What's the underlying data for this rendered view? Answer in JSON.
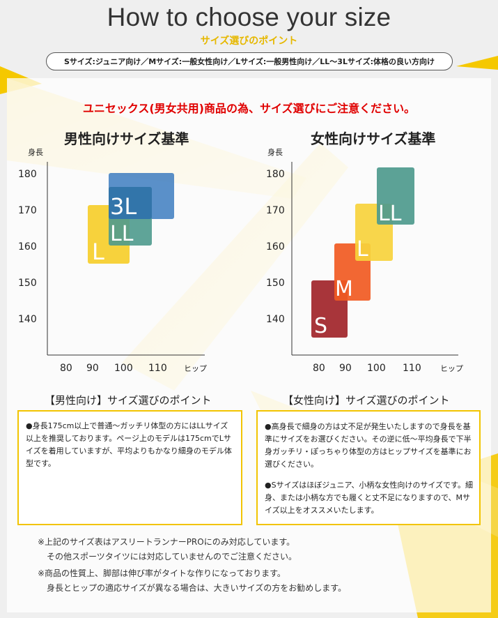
{
  "header": {
    "title": "How to choose your size",
    "subtitle": "サイズ選びのポイント",
    "size_legend": "Sサイズ:ジュニア向け／Mサイズ:一般女性向け／Lサイズ:一般男性向け／LL～3Lサイズ:体格の良い方向け"
  },
  "unisex_note": "ユニセックス(男女共用)商品の為、サイズ選びにご注意ください。",
  "men_chart": {
    "title": "男性向けサイズ基準",
    "y_label": "身長",
    "x_label": "ヒップ",
    "y_ticks": [
      "180",
      "170",
      "160",
      "150",
      "140"
    ],
    "x_ticks": [
      "80",
      "90",
      "100",
      "110"
    ],
    "sizes": [
      {
        "label": "L",
        "color": "#f7d23c"
      },
      {
        "label": "LL",
        "color": "#4e9a8d"
      },
      {
        "label": "3L",
        "color": "#3d7cc0"
      }
    ]
  },
  "women_chart": {
    "title": "女性向けサイズ基準",
    "y_label": "身長",
    "x_label": "ヒップ",
    "y_ticks": [
      "180",
      "170",
      "160",
      "150",
      "140"
    ],
    "x_ticks": [
      "80",
      "90",
      "100",
      "110"
    ],
    "sizes": [
      {
        "label": "S",
        "color": "#a8353a"
      },
      {
        "label": "M",
        "color": "#f15a22"
      },
      {
        "label": "L",
        "color": "#f7d23c"
      },
      {
        "label": "LL",
        "color": "#4e9a8d"
      }
    ]
  },
  "men_points": {
    "title": "【男性向け】サイズ選びのポイント",
    "body": "●身長175cm以上で普通～ガッチリ体型の方にはLLサイズ以上を推奨しております。ページ上のモデルは175cmでLサイズを着用していますが、平均よりもかなり細身のモデル体型です。"
  },
  "women_points": {
    "title": "【女性向け】サイズ選びのポイント",
    "body1": "●高身長で細身の方は丈不足が発生いたしますので身長を基準にサイズをお選びください。その逆に低～平均身長で下半身ガッチリ・ぽっちゃり体型の方はヒップサイズを基準にお選びください。",
    "body2": "●Sサイズはほぼジュニア、小柄な女性向けのサイズです。細身、または小柄な方でも履くと丈不足になりますので、Mサイズ以上をオススメいたします。"
  },
  "footnotes": {
    "note1_line1": "※上記のサイズ表はアスリートランナーPROにのみ対応しています。",
    "note1_line2": "その他スポーツタイツには対応していませんのでご注意ください。",
    "note2_line1": "※商品の性質上、脚部は伸び率がタイトな作りになっております。",
    "note2_line2": "身長とヒップの適応サイズが異なる場合は、大きいサイズの方をお勧めします。"
  },
  "colors": {
    "accent_yellow": "#f2c400",
    "warning_red": "#e00000"
  }
}
